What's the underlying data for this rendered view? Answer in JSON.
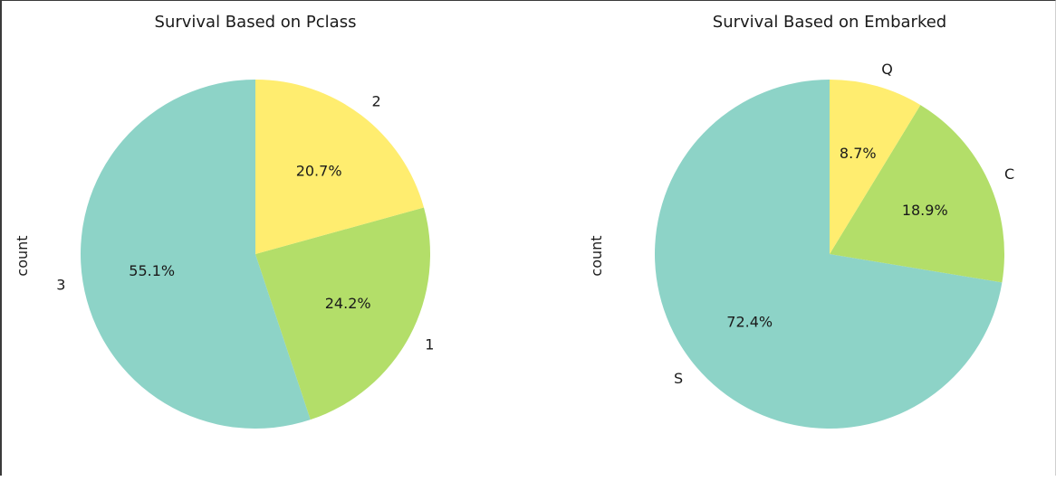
{
  "colors": {
    "slice_teal": "#8dd3c7",
    "slice_green": "#b3de69",
    "slice_yellow": "#ffed6f",
    "text": "#1a1a1a"
  },
  "chart_data": [
    {
      "type": "pie",
      "title": "Survival Based on Pclass",
      "ylabel": "count",
      "start_angle_deg": 90,
      "direction": "counterclockwise",
      "slices": [
        {
          "label": "3",
          "percent": 55.1,
          "pct_label": "55.1%",
          "color": "#8dd3c7"
        },
        {
          "label": "1",
          "percent": 24.2,
          "pct_label": "24.2%",
          "color": "#b3de69"
        },
        {
          "label": "2",
          "percent": 20.7,
          "pct_label": "20.7%",
          "color": "#ffed6f"
        }
      ]
    },
    {
      "type": "pie",
      "title": "Survival Based on Embarked",
      "ylabel": "count",
      "start_angle_deg": 90,
      "direction": "counterclockwise",
      "slices": [
        {
          "label": "S",
          "percent": 72.4,
          "pct_label": "72.4%",
          "color": "#8dd3c7"
        },
        {
          "label": "C",
          "percent": 18.9,
          "pct_label": "18.9%",
          "color": "#b3de69"
        },
        {
          "label": "Q",
          "percent": 8.7,
          "pct_label": "8.7%",
          "color": "#ffed6f"
        }
      ]
    }
  ]
}
